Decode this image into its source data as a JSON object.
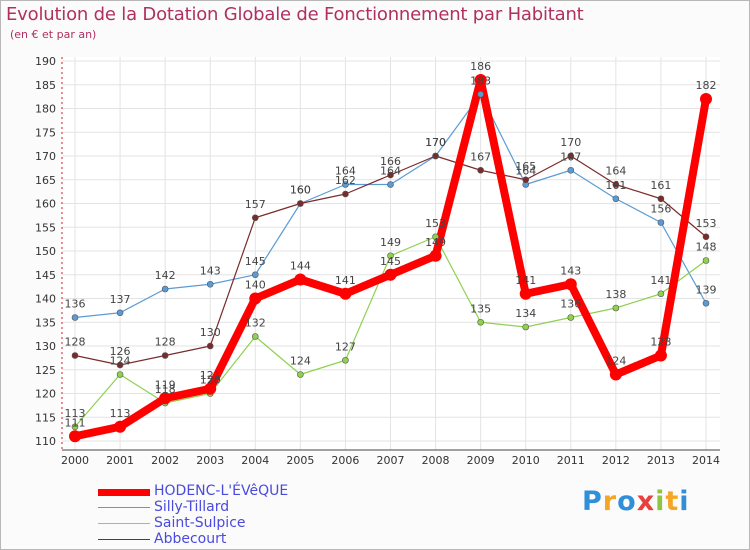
{
  "header": {
    "title": "Evolution de la Dotation Globale de Fonctionnement par Habitant",
    "subtitle": "(en € et par an)"
  },
  "logo": {
    "text": "Proxiti"
  },
  "chart_data": {
    "type": "line",
    "title": "Evolution de la Dotation Globale de Fonctionnement par Habitant",
    "subtitle": "(en € et par an)",
    "xlabel": "",
    "ylabel": "",
    "categories": [
      "2000",
      "2001",
      "2002",
      "2003",
      "2004",
      "2005",
      "2006",
      "2007",
      "2008",
      "2009",
      "2010",
      "2011",
      "2012",
      "2013",
      "2014"
    ],
    "ylim": [
      110,
      190
    ],
    "yticks": [
      110,
      115,
      120,
      125,
      130,
      135,
      140,
      145,
      150,
      155,
      160,
      165,
      170,
      175,
      180,
      185,
      190
    ],
    "grid": true,
    "legend_position": "bottom-left",
    "series": [
      {
        "name": "HODENC-L'ÉVêQUE",
        "color": "#ff0000",
        "values": [
          111,
          113,
          119,
          121,
          140,
          144,
          141,
          145,
          149,
          186,
          141,
          143,
          124,
          128,
          182
        ]
      },
      {
        "name": "Silly-Tillard",
        "color": "#5b9bd5",
        "values": [
          136,
          137,
          142,
          143,
          145,
          160,
          164,
          164,
          170,
          183,
          164,
          167,
          161,
          156,
          139
        ]
      },
      {
        "name": "Saint-Sulpice",
        "color": "#8fd14f",
        "values": [
          113,
          124,
          118,
          120,
          132,
          124,
          127,
          149,
          153,
          135,
          134,
          136,
          138,
          141,
          148
        ]
      },
      {
        "name": "Abbecourt",
        "color": "#7b2b2b",
        "values": [
          128,
          126,
          128,
          130,
          157,
          160,
          162,
          166,
          170,
          167,
          165,
          170,
          164,
          161,
          153
        ]
      }
    ]
  }
}
